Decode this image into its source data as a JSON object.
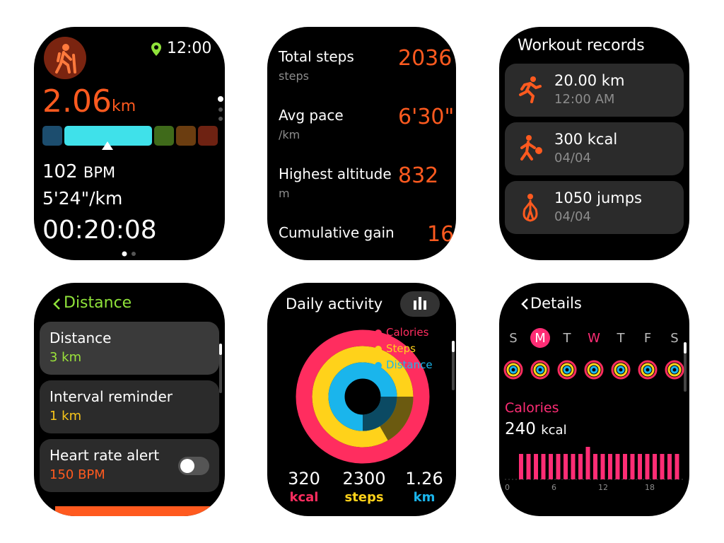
{
  "screens": [
    {
      "time": "12:00",
      "distance": "2.06",
      "distance_unit": "km",
      "heart_rate": "102",
      "heart_rate_unit": "BPM",
      "pace": "5'24\"/km",
      "duration": "00:20:08"
    },
    {
      "stats": [
        {
          "label": "Total steps",
          "unit": "steps",
          "value": "2036"
        },
        {
          "label": "Avg pace",
          "unit": "/km",
          "value": "6'30\""
        },
        {
          "label": "Highest altitude",
          "unit": "m",
          "value": "832"
        },
        {
          "label": "Cumulative gain",
          "value": "16"
        }
      ]
    },
    {
      "title": "Workout records",
      "records": [
        {
          "primary": "20.00 km",
          "secondary": "12:00 AM"
        },
        {
          "primary": "300 kcal",
          "secondary": "04/04"
        },
        {
          "primary": "1050 jumps",
          "secondary": "04/04"
        }
      ]
    },
    {
      "title": "Distance",
      "items": [
        {
          "label": "Distance",
          "value": "3 km"
        },
        {
          "label": "Interval reminder",
          "value": "1 km"
        },
        {
          "label": "Heart rate alert",
          "value": "150 BPM"
        }
      ]
    },
    {
      "title": "Daily activity",
      "legend": [
        "Calories",
        "Steps",
        "Distance"
      ],
      "totals": [
        {
          "value": "320",
          "unit": "kcal"
        },
        {
          "value": "2300",
          "unit": "steps"
        },
        {
          "value": "1.26",
          "unit": "km"
        }
      ]
    },
    {
      "title": "Details",
      "weekdays": [
        "S",
        "M",
        "T",
        "W",
        "T",
        "F",
        "S"
      ],
      "metric": "Calories",
      "value": "240",
      "unit": "kcal",
      "hours": [
        "0",
        "6",
        "12",
        "18"
      ]
    }
  ]
}
